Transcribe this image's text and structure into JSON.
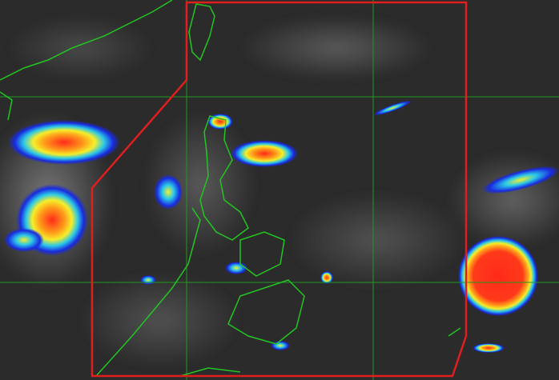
{
  "map": {
    "type": "infrared-satellite-image",
    "region": "philippines",
    "colors": {
      "background": "#2b2b2b",
      "coastline": "#22c522",
      "boundary": "#e01e1e",
      "gridline": "#1f9a1f",
      "cloud_cold_top_red": "#ff2a1a",
      "cloud_orange": "#ff9a1a",
      "cloud_yellow": "#f5ee2a",
      "cloud_cyan": "#2ac8e8",
      "cloud_blue": "#1a2ae0"
    },
    "features": [
      "coastlines",
      "lat-lon-gridlines",
      "area-of-responsibility-boundary",
      "convective-cloud-clusters",
      "tropical-disturbance"
    ]
  }
}
